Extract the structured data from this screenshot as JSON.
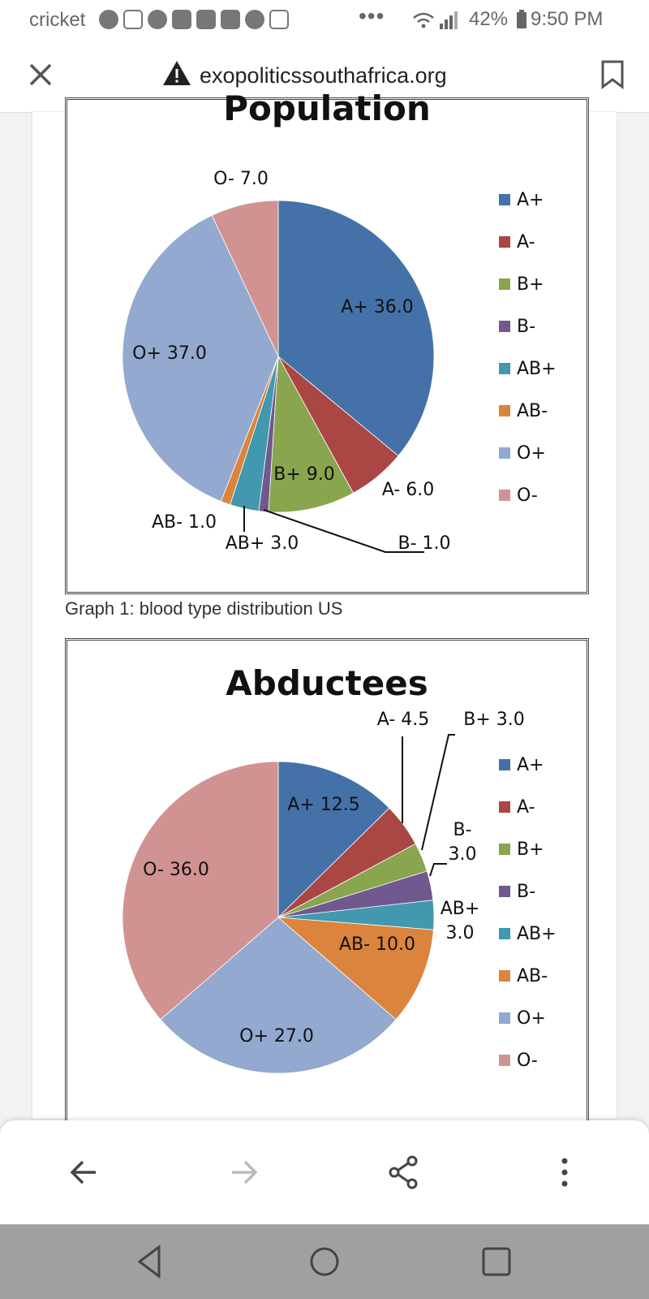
{
  "status_bar": {
    "carrier": "cricket",
    "more": "•••",
    "battery": "42%",
    "time": "9:50 PM"
  },
  "browser": {
    "url": "exopoliticssouthafrica.org",
    "icons": [
      "close-icon",
      "warning-icon",
      "bookmark-icon"
    ]
  },
  "caption": "Graph 1: blood type distribution US",
  "colors": {
    "A+": "#4472A8",
    "A-": "#AA4643",
    "B+": "#89A54E",
    "B-": "#71588F",
    "AB+": "#4198AF",
    "AB-": "#DB843D",
    "O+": "#93A9CF",
    "O-": "#D19392"
  },
  "chart_data": [
    {
      "type": "pie",
      "title": "Population",
      "categories": [
        "A+",
        "A-",
        "B+",
        "B-",
        "AB+",
        "AB-",
        "O+",
        "O-"
      ],
      "values": [
        36.0,
        6.0,
        9.0,
        1.0,
        3.0,
        1.0,
        37.0,
        7.0
      ],
      "data_labels": [
        "A+ 36.0",
        "A- 6.0",
        "B+ 9.0",
        "B- 1.0",
        "AB+ 3.0",
        "AB- 1.0",
        "O+ 37.0",
        "O- 7.0"
      ],
      "legend": [
        "A+",
        "A-",
        "B+",
        "B-",
        "AB+",
        "AB-",
        "O+",
        "O-"
      ],
      "legend_position": "right"
    },
    {
      "type": "pie",
      "title": "Abductees",
      "categories": [
        "A+",
        "A-",
        "B+",
        "B-",
        "AB+",
        "AB-",
        "O+",
        "O-"
      ],
      "values": [
        12.5,
        4.5,
        3.0,
        3.0,
        3.0,
        10.0,
        27.0,
        36.0
      ],
      "data_labels": [
        "A+ 12.5",
        "A- 4.5",
        "B+ 3.0",
        "B- 3.0",
        "AB+ 3.0",
        "AB- 10.0",
        "O+ 27.0",
        "O- 36.0"
      ],
      "legend": [
        "A+",
        "A-",
        "B+",
        "B-",
        "AB+",
        "AB-",
        "O+",
        "O-"
      ],
      "legend_position": "right"
    }
  ],
  "nav": {
    "icons": [
      "back-arrow-icon",
      "forward-arrow-icon",
      "share-icon",
      "more-vert-icon"
    ]
  },
  "system_nav": {
    "icons": [
      "system-back-icon",
      "system-home-icon",
      "system-recents-icon"
    ]
  }
}
